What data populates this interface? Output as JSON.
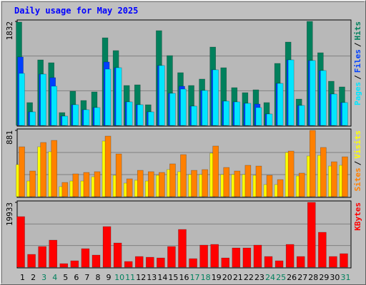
{
  "title": "Daily usage for May 2025",
  "legend_separator": "/",
  "chart_data": [
    {
      "type": "bar",
      "ylim": [
        0,
        1832
      ],
      "yticks": [
        1832
      ],
      "series": [
        {
          "name": "Hits",
          "color": "#00805c",
          "values": [
            1820,
            402,
            1154,
            1104,
            226,
            602,
            439,
            590,
            1543,
            1318,
            703,
            715,
            364,
            1669,
            1230,
            929,
            703,
            816,
            1380,
            1016,
            665,
            577,
            627,
            402,
            1092,
            1468,
            464,
            1832,
            1280,
            778,
            678
          ]
        },
        {
          "name": "Files",
          "color": "#0040ff",
          "values": [
            1205,
            238,
            903,
            841,
            163,
            364,
            276,
            314,
            1117,
            1016,
            414,
            364,
            238,
            1054,
            565,
            690,
            339,
            615,
            979,
            427,
            414,
            389,
            376,
            201,
            740,
            1154,
            351,
            1142,
            966,
            552,
            402
          ]
        },
        {
          "name": "Pages",
          "color": "#00e6ff",
          "values": [
            916,
            238,
            903,
            690,
            163,
            364,
            276,
            314,
            991,
            1016,
            414,
            364,
            238,
            1054,
            565,
            640,
            339,
            615,
            979,
            427,
            414,
            389,
            314,
            201,
            740,
            1154,
            351,
            1142,
            966,
            552,
            402
          ]
        }
      ]
    },
    {
      "type": "bar",
      "ylim": [
        0,
        881
      ],
      "yticks": [
        881
      ],
      "series": [
        {
          "name": "Visits",
          "color": "#ffff00",
          "values": [
            426,
            208,
            663,
            597,
            133,
            208,
            208,
            265,
            739,
            284,
            180,
            218,
            208,
            284,
            360,
            332,
            294,
            294,
            578,
            294,
            294,
            294,
            284,
            161,
            161,
            587,
            275,
            540,
            549,
            407,
            417
          ]
        },
        {
          "name": "Sites",
          "color": "#ff8000",
          "values": [
            663,
            341,
            720,
            748,
            189,
            303,
            322,
            332,
            805,
            568,
            237,
            350,
            332,
            322,
            436,
            559,
            350,
            360,
            673,
            388,
            341,
            417,
            407,
            284,
            227,
            606,
            313,
            881,
            654,
            464,
            530
          ]
        }
      ]
    },
    {
      "type": "bar",
      "ylim": [
        0,
        19933
      ],
      "yticks": [
        19933
      ],
      "series": [
        {
          "name": "KBytes",
          "color": "#ff0000",
          "values": [
            15552,
            3943,
            6352,
            8324,
            1095,
            1971,
            5695,
            3724,
            12486,
            7448,
            1752,
            3286,
            3067,
            2848,
            6352,
            11609,
            2628,
            6790,
            7009,
            2848,
            5914,
            5914,
            6790,
            3286,
            1971,
            7009,
            3286,
            19933,
            10733,
            3286,
            4162
          ]
        }
      ],
      "categories": [
        "1",
        "2",
        "3",
        "4",
        "5",
        "6",
        "7",
        "8",
        "9",
        "10",
        "11",
        "12",
        "13",
        "14",
        "15",
        "16",
        "17",
        "18",
        "19",
        "20",
        "21",
        "22",
        "23",
        "24",
        "25",
        "26",
        "27",
        "28",
        "29",
        "30",
        "31"
      ],
      "category_colors": [
        "#000000",
        "#000000",
        "#00805c",
        "#00805c",
        "#000000",
        "#000000",
        "#000000",
        "#000000",
        "#000000",
        "#00805c",
        "#00805c",
        "#000000",
        "#000000",
        "#000000",
        "#000000",
        "#000000",
        "#00805c",
        "#00805c",
        "#000000",
        "#000000",
        "#000000",
        "#000000",
        "#000000",
        "#00805c",
        "#00805c",
        "#000000",
        "#000000",
        "#000000",
        "#000000",
        "#000000",
        "#00805c"
      ]
    }
  ]
}
